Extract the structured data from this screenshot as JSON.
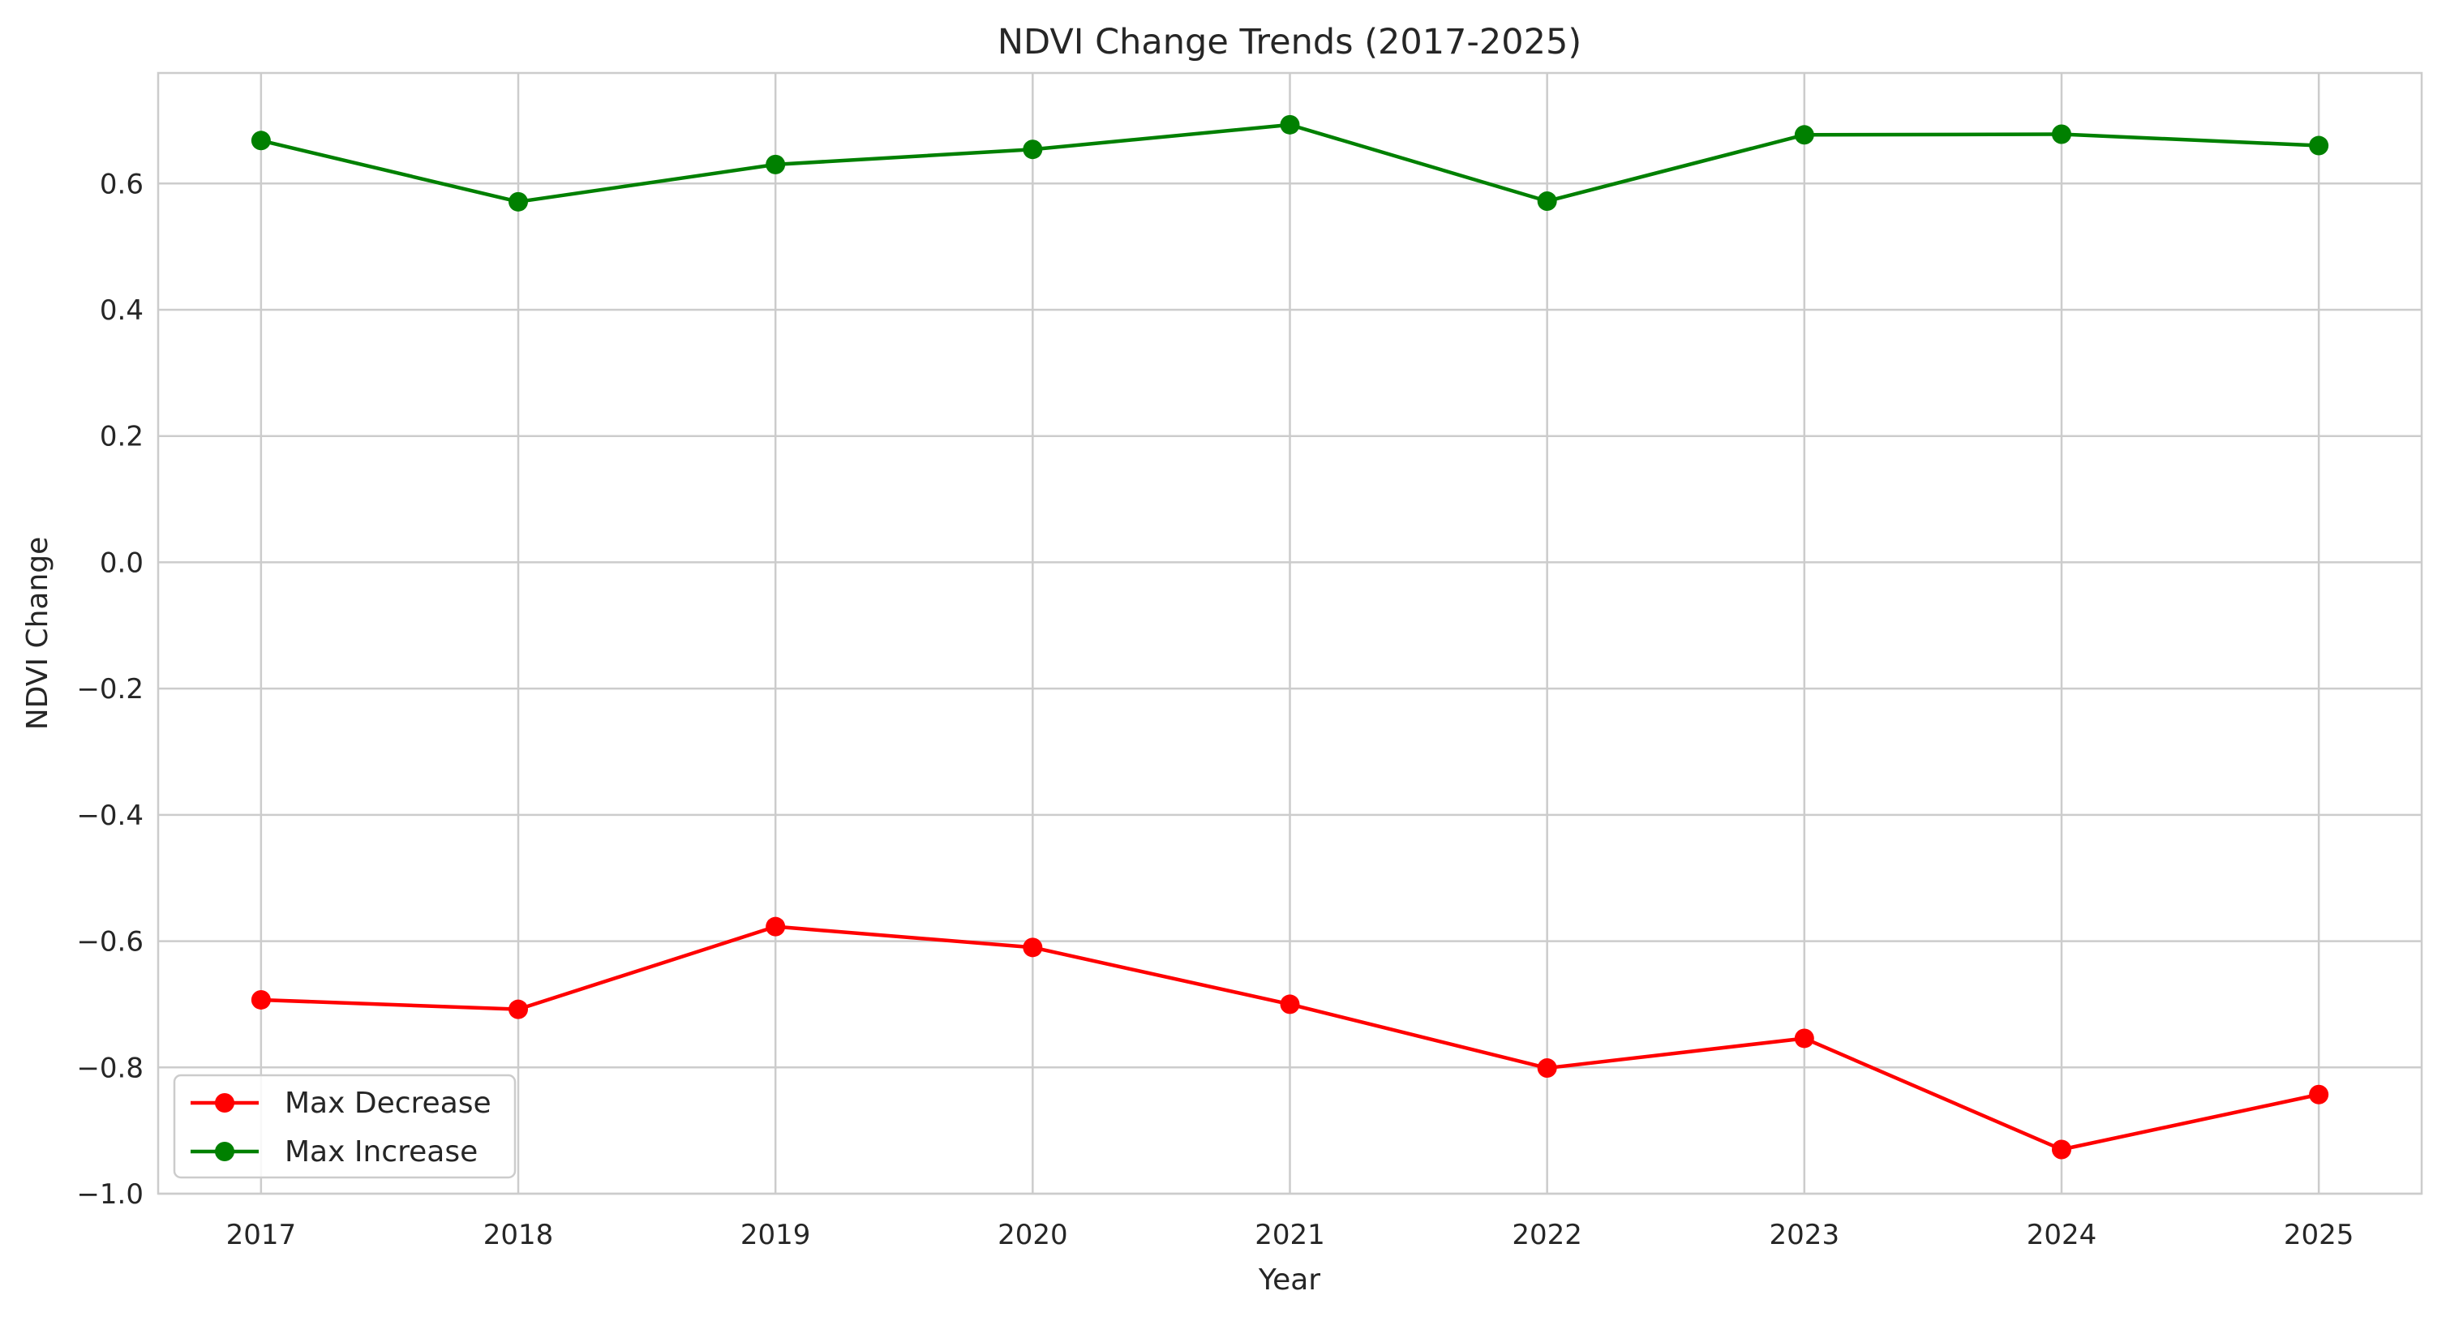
{
  "chart_data": {
    "type": "line",
    "title": "NDVI Change Trends (2017-2025)",
    "xlabel": "Year",
    "ylabel": "NDVI Change",
    "x": [
      2017,
      2018,
      2019,
      2020,
      2021,
      2022,
      2023,
      2024,
      2025
    ],
    "x_tick_labels": [
      "2017",
      "2018",
      "2019",
      "2020",
      "2021",
      "2022",
      "2023",
      "2024",
      "2025"
    ],
    "y_ticks": [
      -1.0,
      -0.8,
      -0.6,
      -0.4,
      -0.2,
      0.0,
      0.2,
      0.4,
      0.6
    ],
    "y_tick_labels": [
      "−1.0",
      "−0.8",
      "−0.6",
      "−0.4",
      "−0.2",
      "0.0",
      "0.2",
      "0.4",
      "0.6"
    ],
    "xlim": [
      2016.6,
      2025.4
    ],
    "ylim": [
      -1.0,
      0.775
    ],
    "grid": true,
    "legend_position": "lower-left",
    "series": [
      {
        "name": "Max Decrease",
        "color": "#ff0000",
        "marker": "circle",
        "values": [
          -0.693,
          -0.708,
          -0.577,
          -0.61,
          -0.7,
          -0.801,
          -0.754,
          -0.93,
          -0.843
        ]
      },
      {
        "name": "Max Increase",
        "color": "#008000",
        "marker": "circle",
        "values": [
          0.668,
          0.571,
          0.63,
          0.654,
          0.693,
          0.572,
          0.677,
          0.678,
          0.66
        ]
      }
    ]
  }
}
